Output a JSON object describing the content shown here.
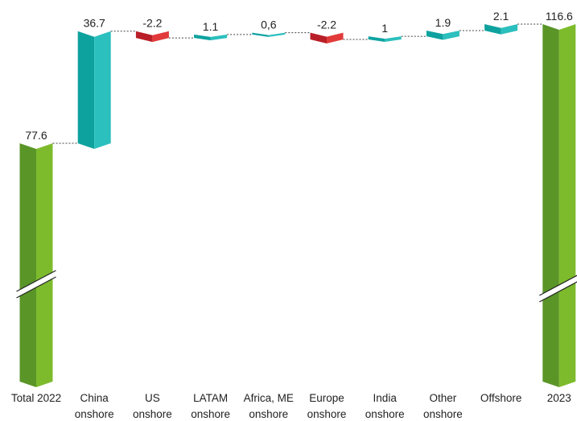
{
  "chart_data": {
    "type": "waterfall",
    "title": "",
    "xlabel": "",
    "ylabel": "",
    "categories": [
      [
        "Total 2022"
      ],
      [
        "China",
        "onshore"
      ],
      [
        "US",
        "onshore"
      ],
      [
        "LATAM",
        "onshore"
      ],
      [
        "Africa, ME",
        "onshore"
      ],
      [
        "Europe",
        "onshore"
      ],
      [
        "India",
        "onshore"
      ],
      [
        "Other",
        "onshore"
      ],
      [
        "Offshore"
      ],
      [
        "2023"
      ]
    ],
    "values": [
      77.6,
      36.7,
      -2.2,
      1.1,
      0.6,
      -2.2,
      1,
      1.9,
      2.1,
      116.6
    ],
    "value_labels": [
      "77.6",
      "36.7",
      "-2.2",
      "1.1",
      "0,6",
      "-2.2",
      "1",
      "1.9",
      "2.1",
      "116.6"
    ],
    "kinds": [
      "total",
      "delta",
      "delta",
      "delta",
      "delta",
      "delta",
      "delta",
      "delta",
      "delta",
      "total"
    ],
    "axis_break": true,
    "colors": {
      "total_light": "#7dbb2d",
      "total_dark": "#5a9527",
      "increase_light": "#2bbfbd",
      "increase_dark": "#0ea29f",
      "decrease_light": "#e23a3a",
      "decrease_dark": "#b91f28"
    }
  }
}
